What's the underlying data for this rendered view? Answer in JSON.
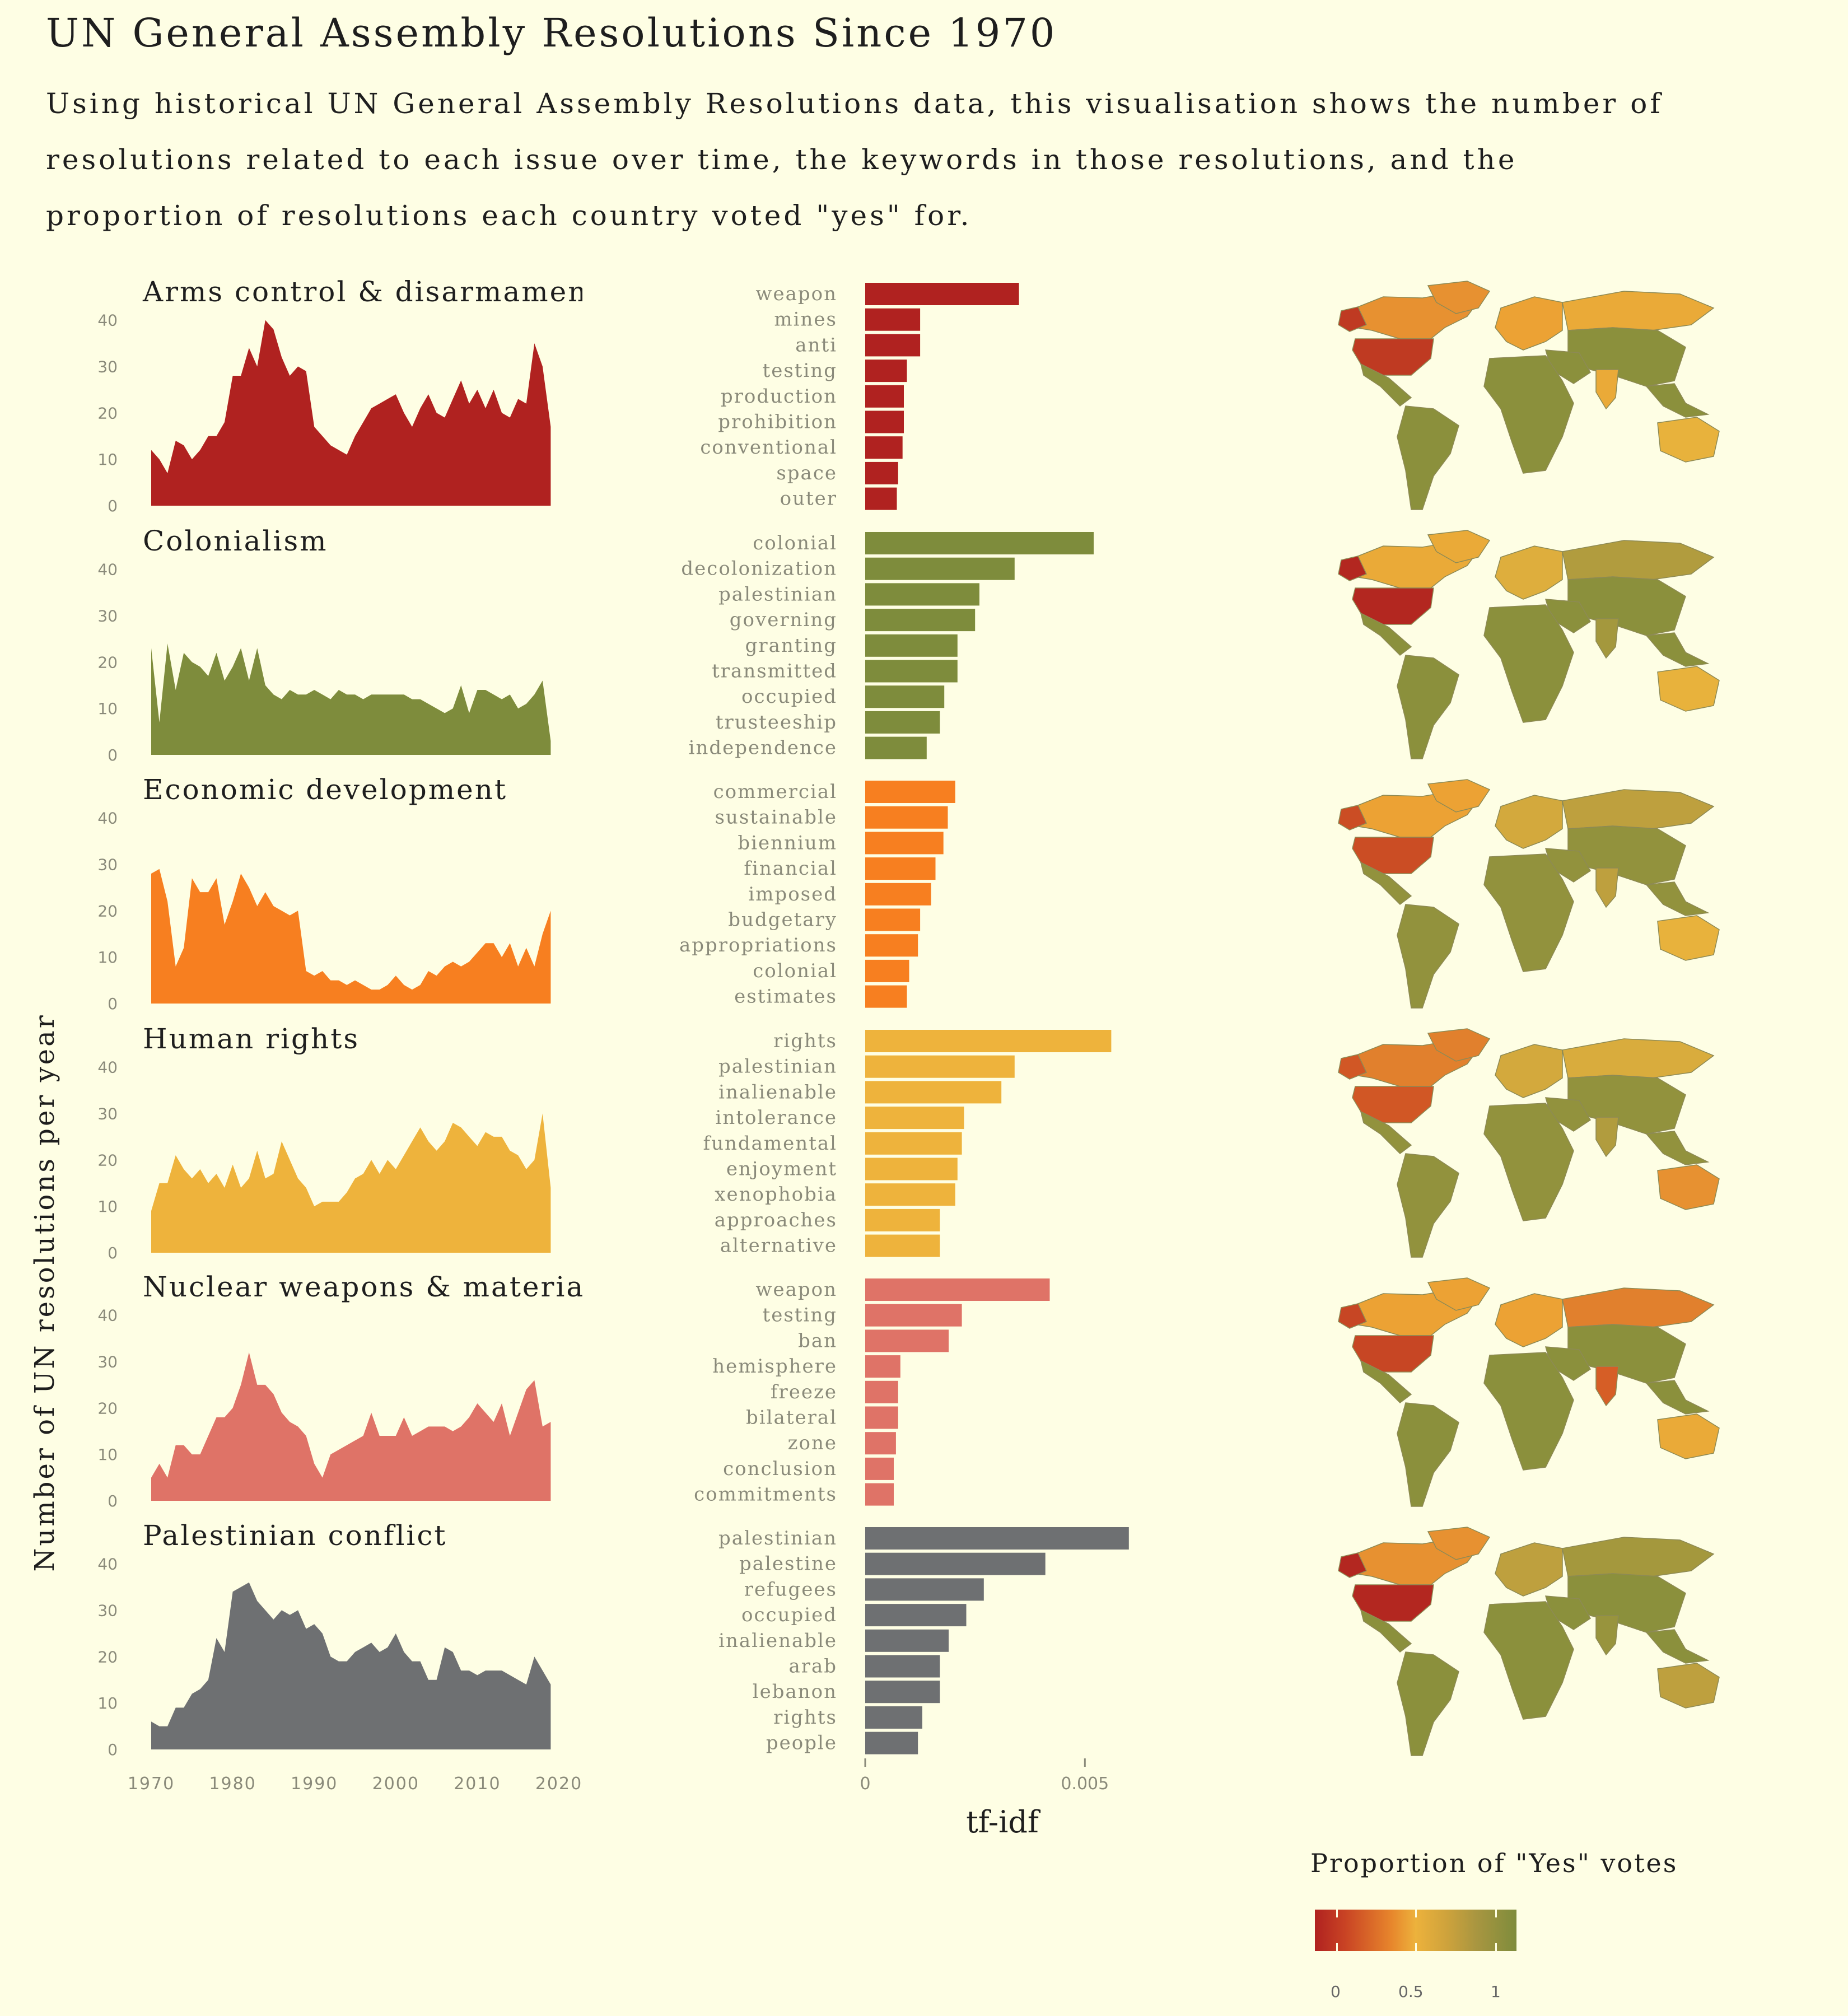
{
  "title": "UN General Assembly Resolutions Since 1970",
  "subtitle": "Using historical UN General Assembly Resolutions data, this visualisation shows the number of resolutions related to each issue over time, the keywords in those resolutions, and the proportion of resolutions each country voted \"yes\" for.",
  "colors": {
    "background": "#fefee4",
    "arms": "#b02220",
    "colonialism": "#7e8c3c",
    "economic": "#f77f20",
    "human_rights": "#eeb33c",
    "nuclear": "#df7367",
    "palestinian": "#6e7072"
  },
  "chart_data": [
    {
      "type": "area",
      "facet": "timeline",
      "ylabel": "Number of UN resolutions per year",
      "xlim": [
        1970,
        2020
      ],
      "ylim": [
        0,
        42
      ],
      "xticks": [
        "1970",
        "1980",
        "1990",
        "2000",
        "2010",
        "2020"
      ],
      "yticks": [
        "0",
        "10",
        "20",
        "30",
        "40"
      ],
      "series": [
        {
          "name": "Arms control & disarmament",
          "key": "arms",
          "x": [
            1970,
            1971,
            1972,
            1973,
            1974,
            1975,
            1976,
            1977,
            1978,
            1979,
            1980,
            1981,
            1982,
            1983,
            1984,
            1985,
            1986,
            1987,
            1988,
            1989,
            1990,
            1991,
            1992,
            1993,
            1994,
            1995,
            1996,
            1997,
            1998,
            1999,
            2000,
            2001,
            2002,
            2003,
            2004,
            2005,
            2006,
            2007,
            2008,
            2009,
            2010,
            2011,
            2012,
            2013,
            2014,
            2015,
            2016,
            2017,
            2018,
            2019
          ],
          "values": [
            12,
            10,
            7,
            14,
            13,
            10,
            12,
            15,
            15,
            18,
            28,
            28,
            34,
            30,
            40,
            38,
            32,
            28,
            30,
            29,
            17,
            15,
            13,
            12,
            11,
            15,
            18,
            21,
            22,
            23,
            24,
            20,
            17,
            21,
            24,
            20,
            19,
            23,
            27,
            22,
            25,
            21,
            25,
            20,
            19,
            23,
            22,
            35,
            30,
            17
          ]
        },
        {
          "name": "Colonialism",
          "key": "colonialism",
          "x": [
            1970,
            1971,
            1972,
            1973,
            1974,
            1975,
            1976,
            1977,
            1978,
            1979,
            1980,
            1981,
            1982,
            1983,
            1984,
            1985,
            1986,
            1987,
            1988,
            1989,
            1990,
            1991,
            1992,
            1993,
            1994,
            1995,
            1996,
            1997,
            1998,
            1999,
            2000,
            2001,
            2002,
            2003,
            2004,
            2005,
            2006,
            2007,
            2008,
            2009,
            2010,
            2011,
            2012,
            2013,
            2014,
            2015,
            2016,
            2017,
            2018,
            2019
          ],
          "values": [
            23,
            7,
            24,
            14,
            22,
            20,
            19,
            17,
            22,
            16,
            19,
            23,
            16,
            23,
            15,
            13,
            12,
            14,
            13,
            13,
            14,
            13,
            12,
            14,
            13,
            13,
            12,
            13,
            13,
            13,
            13,
            13,
            12,
            12,
            11,
            10,
            9,
            10,
            15,
            9,
            14,
            14,
            13,
            12,
            13,
            10,
            11,
            13,
            16,
            3
          ]
        },
        {
          "name": "Economic development",
          "key": "economic",
          "x": [
            1970,
            1971,
            1972,
            1973,
            1974,
            1975,
            1976,
            1977,
            1978,
            1979,
            1980,
            1981,
            1982,
            1983,
            1984,
            1985,
            1986,
            1987,
            1988,
            1989,
            1990,
            1991,
            1992,
            1993,
            1994,
            1995,
            1996,
            1997,
            1998,
            1999,
            2000,
            2001,
            2002,
            2003,
            2004,
            2005,
            2006,
            2007,
            2008,
            2009,
            2010,
            2011,
            2012,
            2013,
            2014,
            2015,
            2016,
            2017,
            2018,
            2019
          ],
          "values": [
            28,
            29,
            22,
            8,
            12,
            27,
            24,
            24,
            27,
            17,
            22,
            28,
            25,
            21,
            24,
            21,
            20,
            19,
            20,
            7,
            6,
            7,
            5,
            5,
            4,
            5,
            4,
            3,
            3,
            4,
            6,
            4,
            3,
            4,
            7,
            6,
            8,
            9,
            8,
            9,
            11,
            13,
            13,
            10,
            13,
            8,
            12,
            8,
            15,
            20
          ]
        },
        {
          "name": "Human rights",
          "key": "human_rights",
          "x": [
            1970,
            1971,
            1972,
            1973,
            1974,
            1975,
            1976,
            1977,
            1978,
            1979,
            1980,
            1981,
            1982,
            1983,
            1984,
            1985,
            1986,
            1987,
            1988,
            1989,
            1990,
            1991,
            1992,
            1993,
            1994,
            1995,
            1996,
            1997,
            1998,
            1999,
            2000,
            2001,
            2002,
            2003,
            2004,
            2005,
            2006,
            2007,
            2008,
            2009,
            2010,
            2011,
            2012,
            2013,
            2014,
            2015,
            2016,
            2017,
            2018,
            2019
          ],
          "values": [
            9,
            15,
            15,
            21,
            18,
            16,
            18,
            15,
            17,
            14,
            19,
            14,
            16,
            22,
            16,
            17,
            24,
            20,
            16,
            14,
            10,
            11,
            11,
            11,
            13,
            16,
            17,
            20,
            17,
            20,
            18,
            21,
            24,
            27,
            24,
            22,
            24,
            28,
            27,
            25,
            23,
            26,
            25,
            25,
            22,
            21,
            18,
            20,
            30,
            14
          ]
        },
        {
          "name": "Nuclear weapons & materials",
          "key": "nuclear",
          "x": [
            1970,
            1971,
            1972,
            1973,
            1974,
            1975,
            1976,
            1977,
            1978,
            1979,
            1980,
            1981,
            1982,
            1983,
            1984,
            1985,
            1986,
            1987,
            1988,
            1989,
            1990,
            1991,
            1992,
            1993,
            1994,
            1995,
            1996,
            1997,
            1998,
            1999,
            2000,
            2001,
            2002,
            2003,
            2004,
            2005,
            2006,
            2007,
            2008,
            2009,
            2010,
            2011,
            2012,
            2013,
            2014,
            2015,
            2016,
            2017,
            2018,
            2019
          ],
          "values": [
            5,
            8,
            5,
            12,
            12,
            10,
            10,
            14,
            18,
            18,
            20,
            25,
            32,
            25,
            25,
            23,
            19,
            17,
            16,
            14,
            8,
            5,
            10,
            11,
            12,
            13,
            14,
            19,
            14,
            14,
            14,
            18,
            14,
            15,
            16,
            16,
            16,
            15,
            16,
            18,
            21,
            19,
            17,
            21,
            14,
            19,
            24,
            26,
            16,
            17
          ]
        },
        {
          "name": "Palestinian conflict",
          "key": "palestinian",
          "x": [
            1970,
            1971,
            1972,
            1973,
            1974,
            1975,
            1976,
            1977,
            1978,
            1979,
            1980,
            1981,
            1982,
            1983,
            1984,
            1985,
            1986,
            1987,
            1988,
            1989,
            1990,
            1991,
            1992,
            1993,
            1994,
            1995,
            1996,
            1997,
            1998,
            1999,
            2000,
            2001,
            2002,
            2003,
            2004,
            2005,
            2006,
            2007,
            2008,
            2009,
            2010,
            2011,
            2012,
            2013,
            2014,
            2015,
            2016,
            2017,
            2018,
            2019
          ],
          "values": [
            6,
            5,
            5,
            9,
            9,
            12,
            13,
            15,
            24,
            21,
            34,
            35,
            36,
            32,
            30,
            28,
            30,
            29,
            30,
            26,
            27,
            25,
            20,
            19,
            19,
            21,
            22,
            23,
            21,
            22,
            25,
            21,
            19,
            19,
            15,
            15,
            22,
            21,
            17,
            17,
            16,
            17,
            17,
            17,
            16,
            15,
            14,
            20,
            17,
            14
          ]
        }
      ]
    },
    {
      "type": "bar",
      "facet": "keywords",
      "xlabel": "tf-idf",
      "xlim": [
        0,
        0.0065
      ],
      "xticks": [
        "0",
        "0.005"
      ],
      "groups": [
        {
          "key": "arms",
          "categories": [
            "weapon",
            "mines",
            "anti",
            "testing",
            "production",
            "prohibition",
            "conventional",
            "space",
            "outer"
          ],
          "values": [
            0.0035,
            0.00125,
            0.00125,
            0.00095,
            0.00088,
            0.00088,
            0.00085,
            0.00075,
            0.00072
          ]
        },
        {
          "key": "colonialism",
          "categories": [
            "colonial",
            "decolonization",
            "palestinian",
            "governing",
            "granting",
            "transmitted",
            "occupied",
            "trusteeship",
            "independence"
          ],
          "values": [
            0.0052,
            0.0034,
            0.0026,
            0.0025,
            0.0021,
            0.0021,
            0.0018,
            0.0017,
            0.0014
          ]
        },
        {
          "key": "economic",
          "categories": [
            "commercial",
            "sustainable",
            "biennium",
            "financial",
            "imposed",
            "budgetary",
            "appropriations",
            "colonial",
            "estimates"
          ],
          "values": [
            0.00205,
            0.00188,
            0.00178,
            0.0016,
            0.0015,
            0.00125,
            0.0012,
            0.001,
            0.00095
          ]
        },
        {
          "key": "human_rights",
          "categories": [
            "rights",
            "palestinian",
            "inalienable",
            "intolerance",
            "fundamental",
            "enjoyment",
            "xenophobia",
            "approaches",
            "alternative"
          ],
          "values": [
            0.0056,
            0.0034,
            0.0031,
            0.00225,
            0.0022,
            0.0021,
            0.00205,
            0.0017,
            0.0017
          ]
        },
        {
          "key": "nuclear",
          "categories": [
            "weapon",
            "testing",
            "ban",
            "hemisphere",
            "freeze",
            "bilateral",
            "zone",
            "conclusion",
            "commitments"
          ],
          "values": [
            0.0042,
            0.0022,
            0.0019,
            0.0008,
            0.00075,
            0.00075,
            0.0007,
            0.00065,
            0.00065
          ]
        },
        {
          "key": "palestinian",
          "categories": [
            "palestinian",
            "palestine",
            "refugees",
            "occupied",
            "inalienable",
            "arab",
            "lebanon",
            "rights",
            "people"
          ],
          "values": [
            0.006,
            0.0041,
            0.0027,
            0.0023,
            0.0019,
            0.0017,
            0.0017,
            0.0013,
            0.0012
          ]
        }
      ]
    }
  ],
  "maps": [
    {
      "key": "arms",
      "usa": 0.1,
      "canada": 0.4,
      "europe": 0.45,
      "russia": 0.5,
      "india": 0.5,
      "default": 0.95,
      "australia": 0.55
    },
    {
      "key": "colonialism",
      "usa": 0.02,
      "canada": 0.5,
      "europe": 0.6,
      "russia": 0.8,
      "india": 0.85,
      "default": 0.95,
      "australia": 0.55
    },
    {
      "key": "economic",
      "usa": 0.18,
      "canada": 0.45,
      "europe": 0.65,
      "russia": 0.75,
      "india": 0.75,
      "default": 0.92,
      "australia": 0.55
    },
    {
      "key": "human_rights",
      "usa": 0.22,
      "canada": 0.35,
      "europe": 0.65,
      "russia": 0.62,
      "india": 0.8,
      "default": 0.92,
      "australia": 0.4
    },
    {
      "key": "nuclear",
      "usa": 0.15,
      "canada": 0.45,
      "europe": 0.45,
      "russia": 0.35,
      "india": 0.25,
      "default": 0.95,
      "australia": 0.5
    },
    {
      "key": "palestinian",
      "usa": 0.02,
      "canada": 0.4,
      "europe": 0.75,
      "russia": 0.85,
      "india": 0.9,
      "default": 0.95,
      "australia": 0.75
    }
  ],
  "legend": {
    "title": "Proportion of \"Yes\" votes",
    "ticks": [
      "0",
      "0.5",
      "1"
    ]
  }
}
